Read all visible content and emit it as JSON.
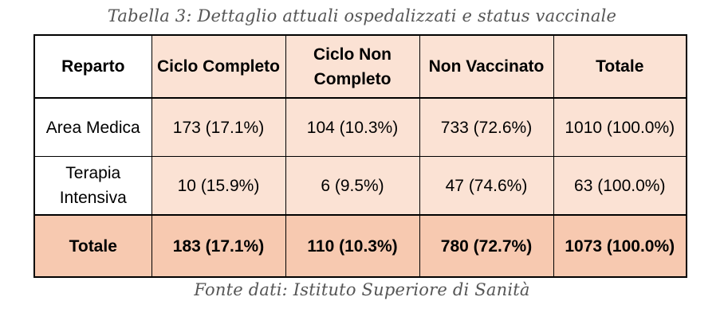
{
  "caption": "Tabella 3: Dettaglio attuali ospedalizzati e status vaccinale",
  "source": "Fonte dati: Istituto Superiore di Sanità",
  "colors": {
    "header_fill": "#fbe2d4",
    "body_fill": "#fbe2d4",
    "total_fill": "#f7c9b0",
    "label_fill": "#ffffff"
  },
  "table": {
    "headers": [
      "Reparto",
      "Ciclo Completo",
      "Ciclo Non Completo",
      "Non Vaccinato",
      "Totale"
    ],
    "rows": [
      [
        "Area Medica",
        "173 (17.1%)",
        "104 (10.3%)",
        "733 (72.6%)",
        "1010 (100.0%)"
      ],
      [
        "Terapia Intensiva",
        "10 (15.9%)",
        "6 (9.5%)",
        "47 (74.6%)",
        "63 (100.0%)"
      ]
    ],
    "total_row": [
      "Totale",
      "183 (17.1%)",
      "110 (10.3%)",
      "780 (72.7%)",
      "1073 (100.0%)"
    ]
  }
}
